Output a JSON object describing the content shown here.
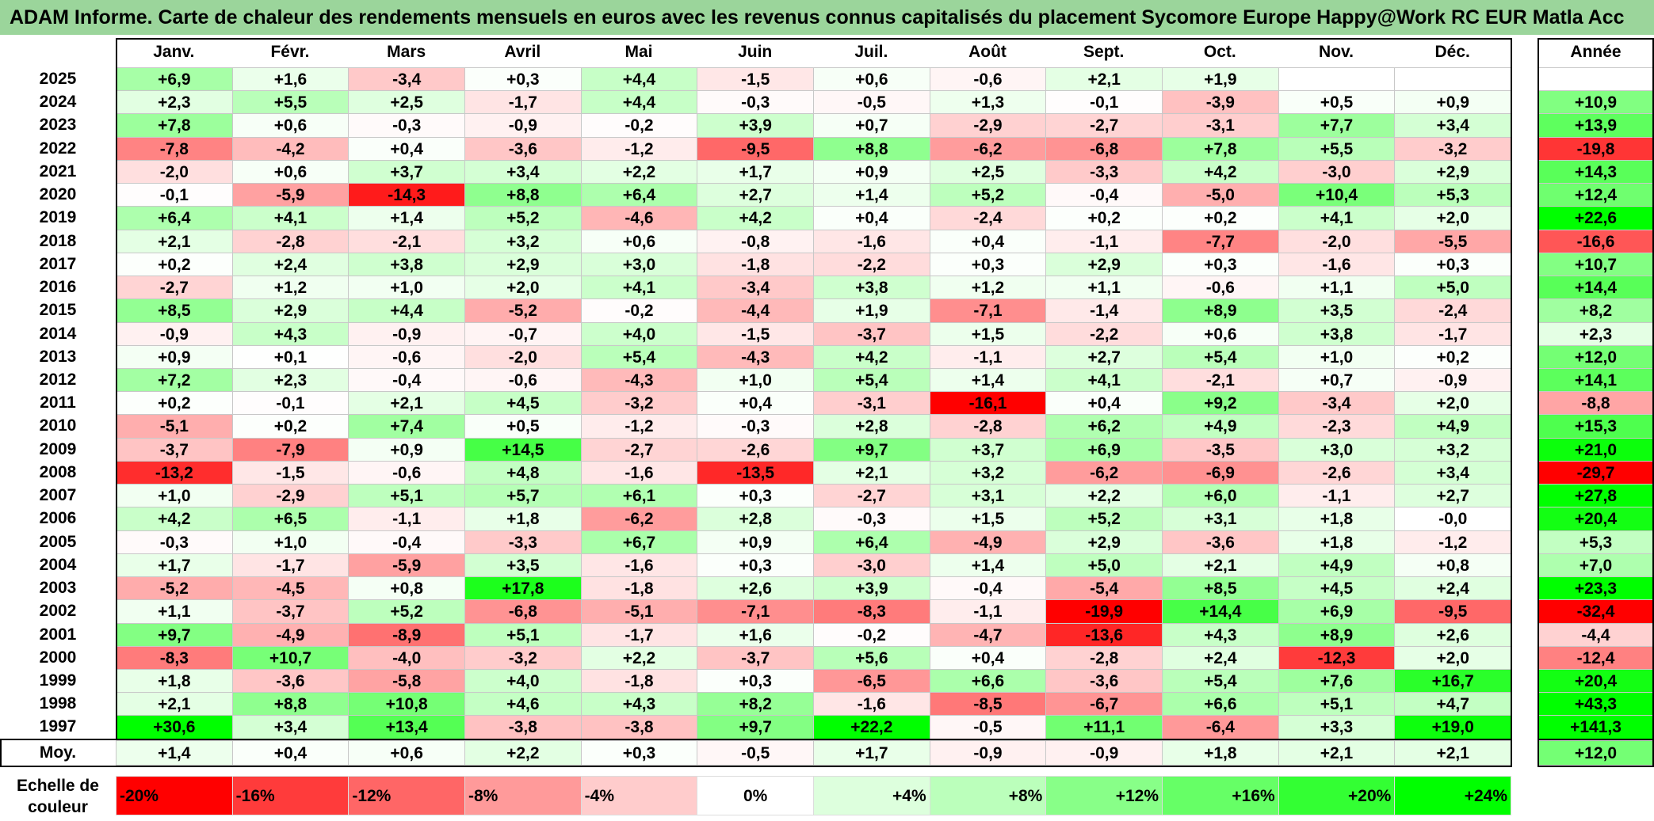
{
  "title": "ADAM Informe. Carte de chaleur des rendements mensuels en euros avec les revenus connus capitalisés du placement Sycomore Europe Happy@Work RC EUR Matla Acc",
  "chart_data": {
    "type": "heatmap",
    "columns": [
      "Janv.",
      "Févr.",
      "Mars",
      "Avril",
      "Mai",
      "Juin",
      "Juil.",
      "Août",
      "Sept.",
      "Oct.",
      "Nov.",
      "Déc."
    ],
    "year_column_label": "Année",
    "average_label": "Moy.",
    "rows": [
      {
        "year": "2025",
        "values": [
          "+6,9",
          "+1,6",
          "-3,4",
          "+0,3",
          "+4,4",
          "-1,5",
          "+0,6",
          "-0,6",
          "+2,1",
          "+1,9",
          "",
          ""
        ],
        "annual": ""
      },
      {
        "year": "2024",
        "values": [
          "+2,3",
          "+5,5",
          "+2,5",
          "-1,7",
          "+4,4",
          "-0,3",
          "-0,5",
          "+1,3",
          "-0,1",
          "-3,9",
          "+0,5",
          "+0,9"
        ],
        "annual": "+10,9"
      },
      {
        "year": "2023",
        "values": [
          "+7,8",
          "+0,6",
          "-0,3",
          "-0,9",
          "-0,2",
          "+3,9",
          "+0,7",
          "-2,9",
          "-2,7",
          "-3,1",
          "+7,7",
          "+3,4"
        ],
        "annual": "+13,9"
      },
      {
        "year": "2022",
        "values": [
          "-7,8",
          "-4,2",
          "+0,4",
          "-3,6",
          "-1,2",
          "-9,5",
          "+8,8",
          "-6,2",
          "-6,8",
          "+7,8",
          "+5,5",
          "-3,2"
        ],
        "annual": "-19,8"
      },
      {
        "year": "2021",
        "values": [
          "-2,0",
          "+0,6",
          "+3,7",
          "+3,4",
          "+2,2",
          "+1,7",
          "+0,9",
          "+2,5",
          "-3,3",
          "+4,2",
          "-3,0",
          "+2,9"
        ],
        "annual": "+14,3"
      },
      {
        "year": "2020",
        "values": [
          "-0,1",
          "-5,9",
          "-14,3",
          "+8,8",
          "+6,4",
          "+2,7",
          "+1,4",
          "+5,2",
          "-0,4",
          "-5,0",
          "+10,4",
          "+5,3"
        ],
        "annual": "+12,4"
      },
      {
        "year": "2019",
        "values": [
          "+6,4",
          "+4,1",
          "+1,4",
          "+5,2",
          "-4,6",
          "+4,2",
          "+0,4",
          "-2,4",
          "+0,2",
          "+0,2",
          "+4,1",
          "+2,0"
        ],
        "annual": "+22,6"
      },
      {
        "year": "2018",
        "values": [
          "+2,1",
          "-2,8",
          "-2,1",
          "+3,2",
          "+0,6",
          "-0,8",
          "-1,6",
          "+0,4",
          "-1,1",
          "-7,7",
          "-2,0",
          "-5,5"
        ],
        "annual": "-16,6"
      },
      {
        "year": "2017",
        "values": [
          "+0,2",
          "+2,4",
          "+3,8",
          "+2,9",
          "+3,0",
          "-1,8",
          "-2,2",
          "+0,3",
          "+2,9",
          "+0,3",
          "-1,6",
          "+0,3"
        ],
        "annual": "+10,7"
      },
      {
        "year": "2016",
        "values": [
          "-2,7",
          "+1,2",
          "+1,0",
          "+2,0",
          "+4,1",
          "-3,4",
          "+3,8",
          "+1,2",
          "+1,1",
          "-0,6",
          "+1,1",
          "+5,0"
        ],
        "annual": "+14,4"
      },
      {
        "year": "2015",
        "values": [
          "+8,5",
          "+2,9",
          "+4,4",
          "-5,2",
          "-0,2",
          "-4,4",
          "+1,9",
          "-7,1",
          "-1,4",
          "+8,9",
          "+3,5",
          "-2,4"
        ],
        "annual": "+8,2"
      },
      {
        "year": "2014",
        "values": [
          "-0,9",
          "+4,3",
          "-0,9",
          "-0,7",
          "+4,0",
          "-1,5",
          "-3,7",
          "+1,5",
          "-2,2",
          "+0,6",
          "+3,8",
          "-1,7"
        ],
        "annual": "+2,3"
      },
      {
        "year": "2013",
        "values": [
          "+0,9",
          "+0,1",
          "-0,6",
          "-2,0",
          "+5,4",
          "-4,3",
          "+4,2",
          "-1,1",
          "+2,7",
          "+5,4",
          "+1,0",
          "+0,2"
        ],
        "annual": "+12,0"
      },
      {
        "year": "2012",
        "values": [
          "+7,2",
          "+2,3",
          "-0,4",
          "-0,6",
          "-4,3",
          "+1,0",
          "+5,4",
          "+1,4",
          "+4,1",
          "-2,1",
          "+0,7",
          "-0,9"
        ],
        "annual": "+14,1"
      },
      {
        "year": "2011",
        "values": [
          "+0,2",
          "-0,1",
          "+2,1",
          "+4,5",
          "-3,2",
          "+0,4",
          "-3,1",
          "-16,1",
          "+0,4",
          "+9,2",
          "-3,4",
          "+2,0"
        ],
        "annual": "-8,8"
      },
      {
        "year": "2010",
        "values": [
          "-5,1",
          "+0,2",
          "+7,4",
          "+0,5",
          "-1,2",
          "-0,3",
          "+2,8",
          "-2,8",
          "+6,2",
          "+4,9",
          "-2,3",
          "+4,9"
        ],
        "annual": "+15,3"
      },
      {
        "year": "2009",
        "values": [
          "-3,7",
          "-7,9",
          "+0,9",
          "+14,5",
          "-2,7",
          "-2,6",
          "+9,7",
          "+3,7",
          "+6,9",
          "-3,5",
          "+3,0",
          "+3,2"
        ],
        "annual": "+21,0"
      },
      {
        "year": "2008",
        "values": [
          "-13,2",
          "-1,5",
          "-0,6",
          "+4,8",
          "-1,6",
          "-13,5",
          "+2,1",
          "+3,2",
          "-6,2",
          "-6,9",
          "-2,6",
          "+3,4"
        ],
        "annual": "-29,7"
      },
      {
        "year": "2007",
        "values": [
          "+1,0",
          "-2,9",
          "+5,1",
          "+5,7",
          "+6,1",
          "+0,3",
          "-2,7",
          "+3,1",
          "+2,2",
          "+6,0",
          "-1,1",
          "+2,7"
        ],
        "annual": "+27,8"
      },
      {
        "year": "2006",
        "values": [
          "+4,2",
          "+6,5",
          "-1,1",
          "+1,8",
          "-6,2",
          "+2,8",
          "-0,3",
          "+1,5",
          "+5,2",
          "+3,1",
          "+1,8",
          "-0,0"
        ],
        "annual": "+20,4"
      },
      {
        "year": "2005",
        "values": [
          "-0,3",
          "+1,0",
          "-0,4",
          "-3,3",
          "+6,7",
          "+0,9",
          "+6,4",
          "-4,9",
          "+2,9",
          "-3,6",
          "+1,8",
          "-1,2"
        ],
        "annual": "+5,3"
      },
      {
        "year": "2004",
        "values": [
          "+1,7",
          "-1,7",
          "-5,9",
          "+3,5",
          "-1,6",
          "+0,3",
          "-3,0",
          "+1,4",
          "+5,0",
          "+2,1",
          "+4,9",
          "+0,8"
        ],
        "annual": "+7,0"
      },
      {
        "year": "2003",
        "values": [
          "-5,2",
          "-4,5",
          "+0,8",
          "+17,8",
          "-1,8",
          "+2,6",
          "+3,9",
          "-0,4",
          "-5,4",
          "+8,5",
          "+4,5",
          "+2,4"
        ],
        "annual": "+23,3"
      },
      {
        "year": "2002",
        "values": [
          "+1,1",
          "-3,7",
          "+5,2",
          "-6,8",
          "-5,1",
          "-7,1",
          "-8,3",
          "-1,1",
          "-19,9",
          "+14,4",
          "+6,9",
          "-9,5"
        ],
        "annual": "-32,4"
      },
      {
        "year": "2001",
        "values": [
          "+9,7",
          "-4,9",
          "-8,9",
          "+5,1",
          "-1,7",
          "+1,6",
          "-0,2",
          "-4,7",
          "-13,6",
          "+4,3",
          "+8,9",
          "+2,6"
        ],
        "annual": "-4,4"
      },
      {
        "year": "2000",
        "values": [
          "-8,3",
          "+10,7",
          "-4,0",
          "-3,2",
          "+2,2",
          "-3,7",
          "+5,6",
          "+0,4",
          "-2,8",
          "+2,4",
          "-12,3",
          "+2,0"
        ],
        "annual": "-12,4"
      },
      {
        "year": "1999",
        "values": [
          "+1,8",
          "-3,6",
          "-5,8",
          "+4,0",
          "-1,8",
          "+0,3",
          "-6,5",
          "+6,6",
          "-3,6",
          "+5,4",
          "+7,6",
          "+16,7"
        ],
        "annual": "+20,4"
      },
      {
        "year": "1998",
        "values": [
          "+2,1",
          "+8,8",
          "+10,8",
          "+4,6",
          "+4,3",
          "+8,2",
          "-1,6",
          "-8,5",
          "-6,7",
          "+6,6",
          "+5,1",
          "+4,7"
        ],
        "annual": "+43,3"
      },
      {
        "year": "1997",
        "values": [
          "+30,6",
          "+3,4",
          "+13,4",
          "-3,8",
          "-3,8",
          "+9,7",
          "+22,2",
          "-0,5",
          "+11,1",
          "-6,4",
          "+3,3",
          "+19,0"
        ],
        "annual": "+141,3"
      }
    ],
    "average": {
      "values": [
        "+1,4",
        "+0,4",
        "+0,6",
        "+2,2",
        "+0,3",
        "-0,5",
        "+1,7",
        "-0,9",
        "-0,9",
        "+1,8",
        "+2,1",
        "+2,1"
      ],
      "annual": "+12,0"
    },
    "scale": {
      "label_line1": "Echelle de",
      "label_line2": "couleur",
      "stops": [
        "-20%",
        "-16%",
        "-12%",
        "-8%",
        "-4%",
        "0%",
        "+4%",
        "+8%",
        "+12%",
        "+16%",
        "+20%",
        "+24%"
      ],
      "colors": [
        "#ff0000",
        "#ff3b3b",
        "#ff6666",
        "#ff9a9a",
        "#ffcccc",
        "#ffffff",
        "#ddffdd",
        "#bbffbb",
        "#88ff88",
        "#66ff66",
        "#33ff33",
        "#00ff00"
      ]
    }
  }
}
